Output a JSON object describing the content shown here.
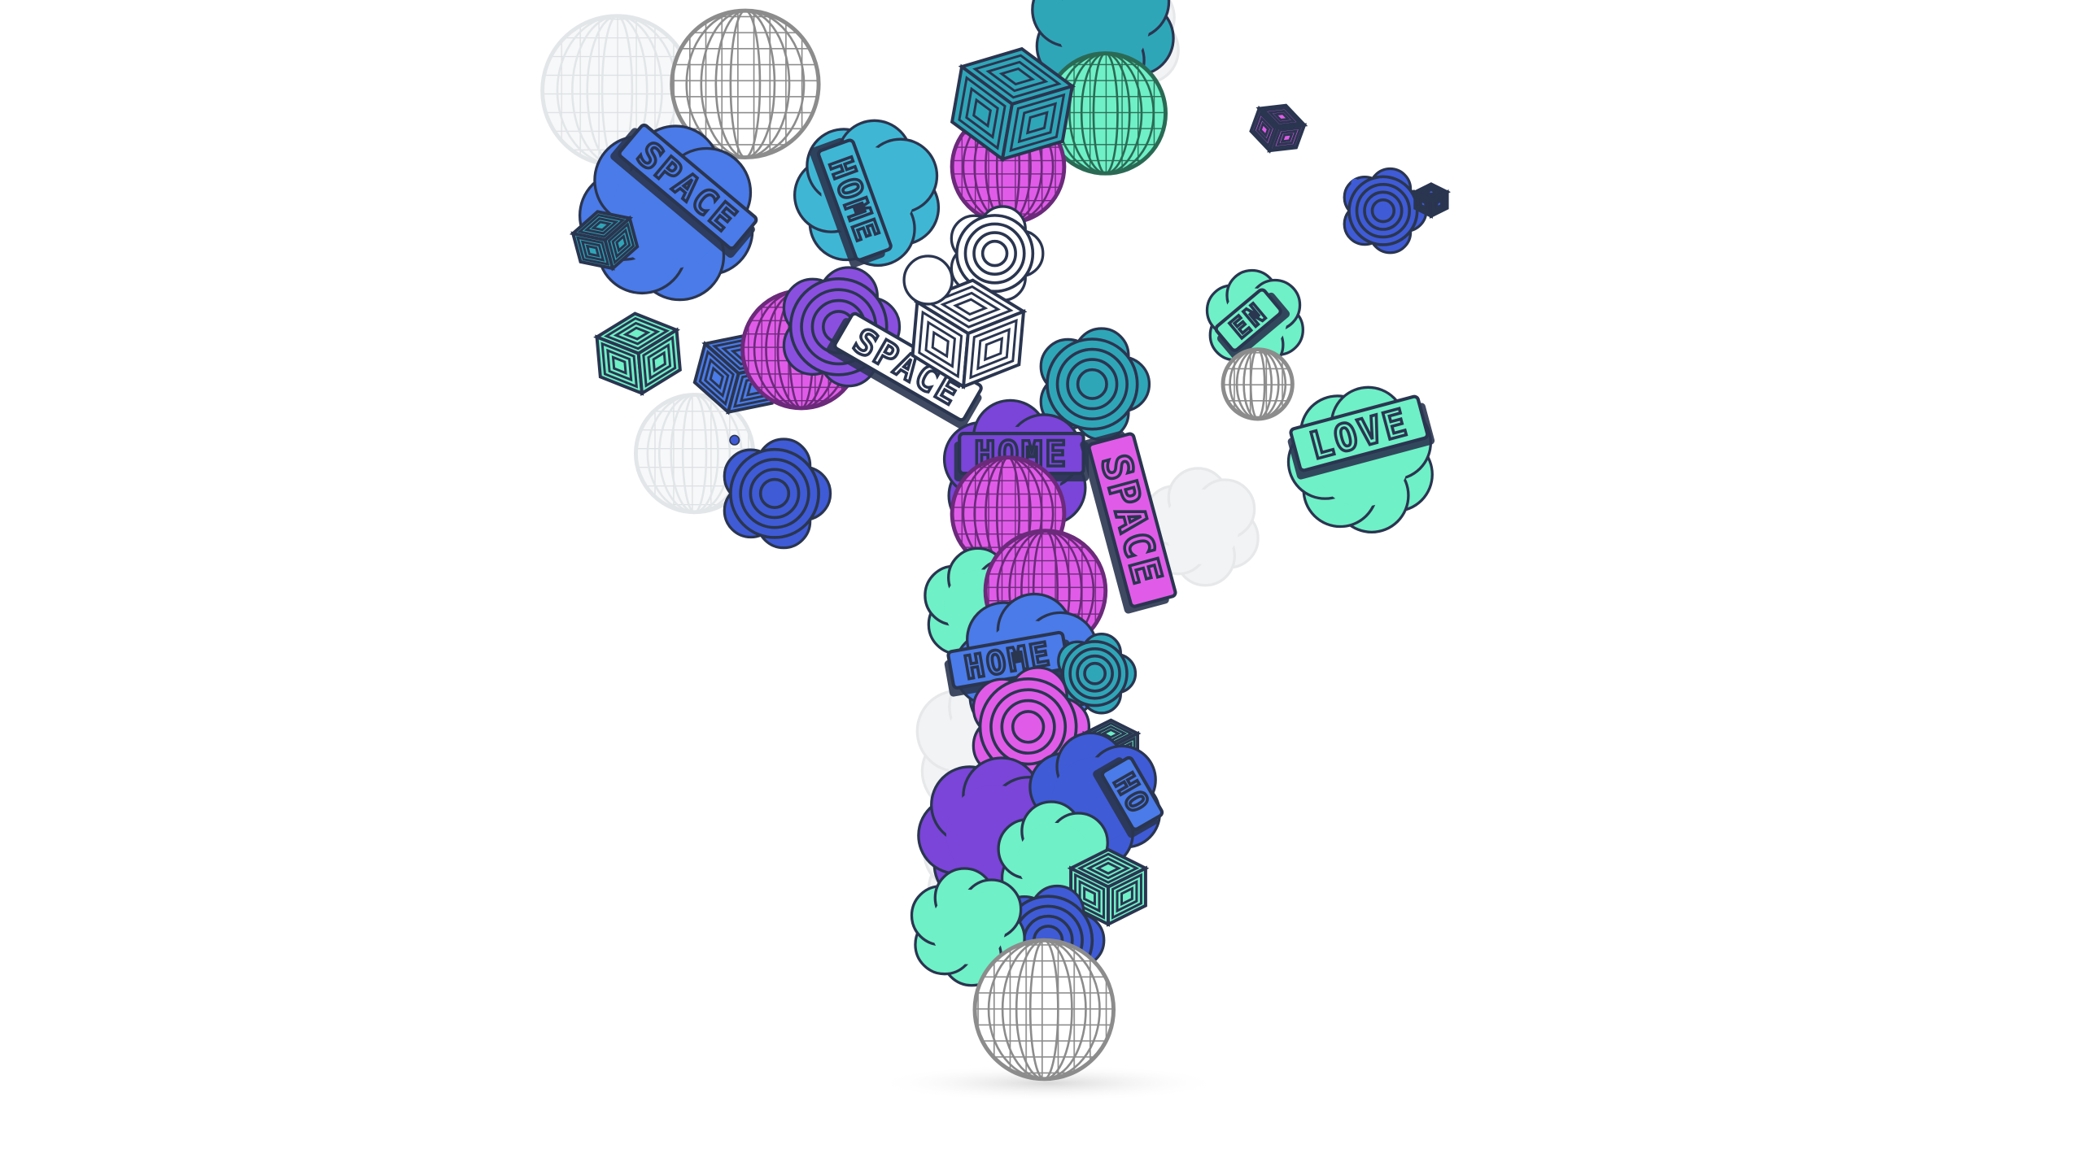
{
  "scene": {
    "description_note": "",
    "palette": {
      "blue": "#4a7be8",
      "royal": "#3f5bd6",
      "cyan": "#3fb7d4",
      "teal": "#2fa6b8",
      "mint": "#6ff0c6",
      "green": "#4fe0a8",
      "magenta": "#e05ce8",
      "purple": "#8b4fe0",
      "violet": "#7a45d8",
      "white": "#f5f5f5",
      "outline": "#2a3550",
      "grey": "#8c8c8c",
      "ghost": "#eef0f2"
    },
    "sticker_words": [
      "HOME",
      "SPACE",
      "LOVE"
    ]
  }
}
